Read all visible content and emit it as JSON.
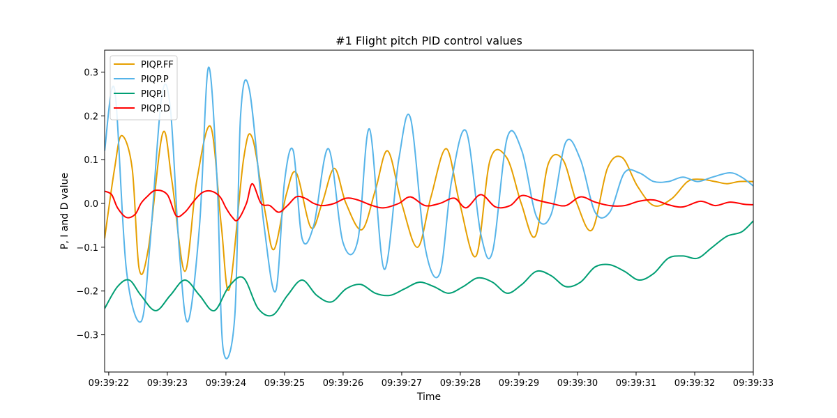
{
  "chart_data": {
    "type": "line",
    "title": "#1 Flight pitch PID control values",
    "xlabel": "Time",
    "ylabel": "P, I and D value",
    "xlim": [
      -0.07,
      11.0
    ],
    "ylim": [
      -0.385,
      0.35
    ],
    "x_ticks": [
      {
        "value": 0,
        "label": "09:39:22"
      },
      {
        "value": 1,
        "label": "09:39:23"
      },
      {
        "value": 2,
        "label": "09:39:24"
      },
      {
        "value": 3,
        "label": "09:39:25"
      },
      {
        "value": 4,
        "label": "09:39:26"
      },
      {
        "value": 5,
        "label": "09:39:27"
      },
      {
        "value": 6,
        "label": "09:39:28"
      },
      {
        "value": 7,
        "label": "09:39:29"
      },
      {
        "value": 8,
        "label": "09:39:30"
      },
      {
        "value": 9,
        "label": "09:39:31"
      },
      {
        "value": 10,
        "label": "09:39:32"
      },
      {
        "value": 11,
        "label": "09:39:33"
      }
    ],
    "y_ticks": [
      {
        "value": 0.3,
        "label": "0.3"
      },
      {
        "value": 0.2,
        "label": "0.2"
      },
      {
        "value": 0.1,
        "label": "0.1"
      },
      {
        "value": 0.0,
        "label": "0.0"
      },
      {
        "value": -0.1,
        "label": "−0.1"
      },
      {
        "value": -0.2,
        "label": "−0.2"
      },
      {
        "value": -0.3,
        "label": "−0.3"
      }
    ],
    "grid": false,
    "legend_position": "top-left",
    "series": [
      {
        "name": "PIQP.FF",
        "color": "#e69f00",
        "x": [
          -0.07,
          0.1,
          0.22,
          0.4,
          0.52,
          0.68,
          0.92,
          1.08,
          1.3,
          1.5,
          1.74,
          1.92,
          2.06,
          2.3,
          2.45,
          2.67,
          2.82,
          3.03,
          3.2,
          3.45,
          3.64,
          3.85,
          4.05,
          4.32,
          4.55,
          4.76,
          5.0,
          5.27,
          5.5,
          5.76,
          5.99,
          6.27,
          6.51,
          6.79,
          7.04,
          7.28,
          7.5,
          7.75,
          7.99,
          8.25,
          8.51,
          8.76,
          9.02,
          9.3,
          9.6,
          9.88,
          10.1,
          10.35,
          10.55,
          10.76,
          11.0
        ],
        "values": [
          -0.08,
          0.08,
          0.155,
          0.08,
          -0.15,
          -0.1,
          0.16,
          0.05,
          -0.155,
          0.05,
          0.175,
          -0.05,
          -0.195,
          0.1,
          0.15,
          -0.02,
          -0.105,
          0.02,
          0.07,
          -0.055,
          0.0,
          0.08,
          0.0,
          -0.06,
          0.03,
          0.12,
          0.0,
          -0.1,
          0.015,
          0.125,
          0.0,
          -0.12,
          0.1,
          0.105,
          0.0,
          -0.075,
          0.09,
          0.1,
          0.0,
          -0.06,
          0.08,
          0.105,
          0.04,
          -0.005,
          0.01,
          0.05,
          0.055,
          0.05,
          0.045,
          0.05,
          0.05
        ]
      },
      {
        "name": "PIQP.P",
        "color": "#56b4e9",
        "x": [
          -0.07,
          0.1,
          0.3,
          0.55,
          0.7,
          0.9,
          1.05,
          1.2,
          1.35,
          1.55,
          1.7,
          1.85,
          1.95,
          2.15,
          2.25,
          2.4,
          2.65,
          2.85,
          3.0,
          3.15,
          3.3,
          3.5,
          3.75,
          4.0,
          4.25,
          4.45,
          4.7,
          4.95,
          5.15,
          5.4,
          5.65,
          5.85,
          6.1,
          6.35,
          6.55,
          6.8,
          7.05,
          7.3,
          7.55,
          7.8,
          8.05,
          8.3,
          8.55,
          8.8,
          9.05,
          9.3,
          9.55,
          9.8,
          10.05,
          10.3,
          10.6,
          10.8,
          11.0
        ],
        "values": [
          0.12,
          0.26,
          -0.15,
          -0.27,
          -0.1,
          0.24,
          0.22,
          -0.1,
          -0.27,
          -0.05,
          0.31,
          0.05,
          -0.33,
          -0.26,
          0.2,
          0.26,
          -0.05,
          -0.2,
          0.05,
          0.12,
          -0.08,
          -0.05,
          0.125,
          -0.09,
          -0.085,
          0.17,
          -0.15,
          0.1,
          0.195,
          -0.1,
          -0.16,
          0.05,
          0.165,
          -0.07,
          -0.11,
          0.15,
          0.12,
          -0.03,
          -0.025,
          0.14,
          0.1,
          -0.02,
          -0.02,
          0.07,
          0.07,
          0.05,
          0.05,
          0.06,
          0.05,
          0.06,
          0.07,
          0.06,
          0.04
        ]
      },
      {
        "name": "PIQP.I",
        "color": "#009e73",
        "x": [
          -0.07,
          0.15,
          0.35,
          0.55,
          0.8,
          1.05,
          1.3,
          1.55,
          1.8,
          2.05,
          2.3,
          2.55,
          2.8,
          3.05,
          3.3,
          3.55,
          3.8,
          4.05,
          4.3,
          4.55,
          4.8,
          5.05,
          5.3,
          5.55,
          5.8,
          6.05,
          6.3,
          6.55,
          6.8,
          7.05,
          7.3,
          7.55,
          7.8,
          8.05,
          8.3,
          8.55,
          8.8,
          9.05,
          9.3,
          9.55,
          9.8,
          10.05,
          10.3,
          10.55,
          10.8,
          11.0
        ],
        "values": [
          -0.24,
          -0.19,
          -0.175,
          -0.21,
          -0.245,
          -0.21,
          -0.175,
          -0.21,
          -0.245,
          -0.19,
          -0.17,
          -0.24,
          -0.255,
          -0.21,
          -0.175,
          -0.21,
          -0.225,
          -0.195,
          -0.185,
          -0.205,
          -0.21,
          -0.195,
          -0.18,
          -0.19,
          -0.205,
          -0.19,
          -0.17,
          -0.18,
          -0.205,
          -0.185,
          -0.155,
          -0.165,
          -0.19,
          -0.18,
          -0.145,
          -0.14,
          -0.155,
          -0.175,
          -0.16,
          -0.125,
          -0.12,
          -0.125,
          -0.1,
          -0.075,
          -0.065,
          -0.04
        ]
      },
      {
        "name": "PIQP.D",
        "color": "#ff0000",
        "x": [
          -0.07,
          0.05,
          0.15,
          0.3,
          0.45,
          0.55,
          0.65,
          0.8,
          1.0,
          1.15,
          1.3,
          1.45,
          1.6,
          1.75,
          1.9,
          2.0,
          2.1,
          2.2,
          2.35,
          2.45,
          2.6,
          2.75,
          2.9,
          3.05,
          3.2,
          3.35,
          3.5,
          3.65,
          3.85,
          4.05,
          4.25,
          4.5,
          4.7,
          4.95,
          5.15,
          5.4,
          5.65,
          5.9,
          6.1,
          6.35,
          6.6,
          6.85,
          7.05,
          7.3,
          7.55,
          7.8,
          8.05,
          8.3,
          8.55,
          8.8,
          9.05,
          9.3,
          9.55,
          9.8,
          10.1,
          10.35,
          10.6,
          10.85,
          11.0
        ],
        "values": [
          0.028,
          0.02,
          -0.01,
          -0.032,
          -0.025,
          0.0,
          0.015,
          0.03,
          0.02,
          -0.028,
          -0.02,
          0.005,
          0.025,
          0.028,
          0.015,
          -0.01,
          -0.03,
          -0.038,
          0.0,
          0.045,
          0.0,
          -0.005,
          -0.02,
          -0.005,
          0.015,
          0.012,
          0.0,
          -0.005,
          0.0,
          0.012,
          0.008,
          -0.005,
          -0.01,
          0.0,
          0.015,
          -0.005,
          0.0,
          0.012,
          -0.01,
          0.02,
          -0.008,
          -0.005,
          0.018,
          0.008,
          0.0,
          -0.005,
          0.015,
          0.003,
          -0.005,
          -0.005,
          0.005,
          0.008,
          -0.003,
          -0.008,
          0.005,
          -0.005,
          0.003,
          -0.002,
          -0.003
        ]
      }
    ]
  }
}
